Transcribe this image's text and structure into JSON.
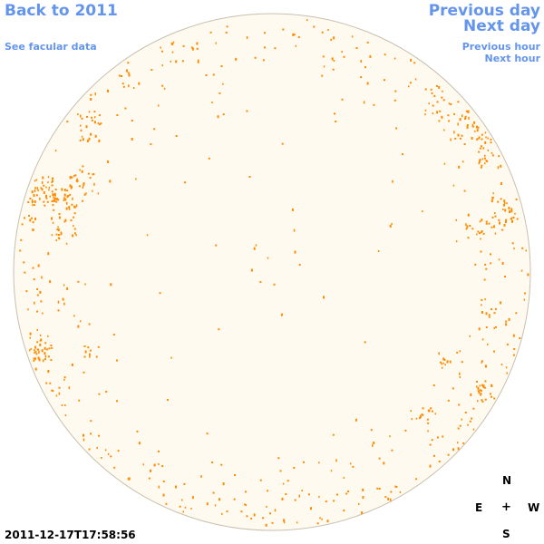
{
  "nav": {
    "back_label": "Back to 2011",
    "facular_label": "See facular data",
    "prev_day_label": "Previous day",
    "next_day_label": "Next day",
    "prev_hour_label": "Previous hour",
    "next_hour_label": "Next hour"
  },
  "timestamp": "2011-12-17T17:58:56",
  "compass": {
    "north": "N",
    "east": "E",
    "center": "+",
    "west": "W",
    "south": "S"
  },
  "colors": {
    "link": "#6495ed",
    "disk_fill": "#fffaf0",
    "disk_stroke": "#c9bfae",
    "facula": "#ff8c00"
  },
  "icons": {
    "compass_center": "crosshair-icon"
  }
}
